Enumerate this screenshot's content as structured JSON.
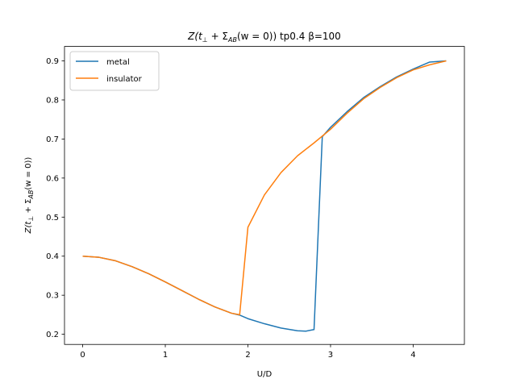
{
  "chart_data": {
    "type": "line",
    "title_main": "Z(t",
    "title_sub_perp": "⊥",
    "title_mid": " + Σ",
    "title_sub_ab": "AB",
    "title_tail": "(w = 0)) tp0.4 β=100",
    "xlabel": "U/D",
    "ylabel_main": "Z(t",
    "ylabel_sub_perp": "⊥",
    "ylabel_mid": " + Σ",
    "ylabel_sub_ab": "AB",
    "ylabel_tail": "(w = 0))",
    "xlim": [
      -0.22,
      4.62
    ],
    "ylim": [
      0.174,
      0.937
    ],
    "xticks": [
      0,
      1,
      2,
      3,
      4
    ],
    "xtick_labels": [
      "0",
      "1",
      "2",
      "3",
      "4"
    ],
    "yticks": [
      0.2,
      0.3,
      0.4,
      0.5,
      0.6,
      0.7,
      0.8,
      0.9
    ],
    "ytick_labels": [
      "0.2",
      "0.3",
      "0.4",
      "0.5",
      "0.6",
      "0.7",
      "0.8",
      "0.9"
    ],
    "grid": false,
    "legend_position": "top-left",
    "series": [
      {
        "name": "metal",
        "color": "#1f77b4",
        "x": [
          0,
          0.2,
          0.4,
          0.6,
          0.8,
          1.0,
          1.2,
          1.4,
          1.6,
          1.8,
          1.9,
          2.0,
          2.2,
          2.4,
          2.6,
          2.7,
          2.8,
          2.9,
          3.0,
          3.2,
          3.4,
          3.6,
          3.8,
          4.0,
          4.2,
          4.4
        ],
        "y": [
          0.4,
          0.397,
          0.388,
          0.373,
          0.355,
          0.334,
          0.312,
          0.29,
          0.27,
          0.254,
          0.249,
          0.24,
          0.227,
          0.216,
          0.209,
          0.208,
          0.212,
          0.706,
          0.73,
          0.77,
          0.806,
          0.834,
          0.859,
          0.879,
          0.897,
          0.9
        ]
      },
      {
        "name": "insulator",
        "color": "#ff7f0e",
        "x": [
          0,
          0.2,
          0.4,
          0.6,
          0.8,
          1.0,
          1.2,
          1.4,
          1.6,
          1.8,
          1.9,
          2.0,
          2.2,
          2.4,
          2.6,
          2.8,
          3.0,
          3.2,
          3.4,
          3.6,
          3.8,
          4.0,
          4.2,
          4.4
        ],
        "y": [
          0.4,
          0.397,
          0.388,
          0.373,
          0.355,
          0.334,
          0.312,
          0.29,
          0.27,
          0.254,
          0.25,
          0.474,
          0.557,
          0.614,
          0.657,
          0.69,
          0.725,
          0.766,
          0.803,
          0.832,
          0.857,
          0.877,
          0.89,
          0.9
        ]
      }
    ]
  }
}
